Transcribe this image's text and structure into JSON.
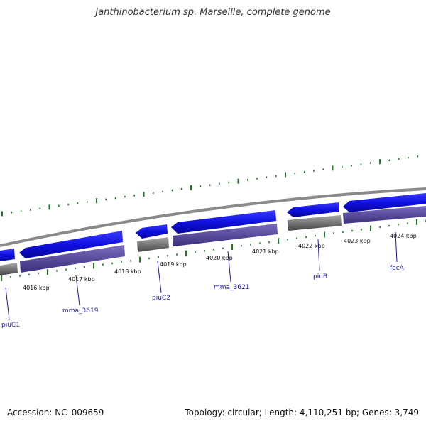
{
  "title": "Janthinobacterium sp. Marseille, complete genome",
  "footer": {
    "accession": "Accession: NC_009659",
    "summary": "Topology: circular; Length: 4,110,251 bp; Genes: 3,749"
  },
  "colors": {
    "gene_forward": "#1010e0",
    "gene_reverse_band": "#5a4c98",
    "backbone": "#808080",
    "backbone_dark": "#555555",
    "tick": "#1c7c1c",
    "label": "#1a1aa0"
  },
  "scale_labels": [
    "4016 kbp",
    "4017 kbp",
    "4018 kbp",
    "4019 kbp",
    "4020 kbp",
    "4021 kbp",
    "4022 kbp",
    "4023 kbp",
    "4024 kbp"
  ],
  "gene_labels": [
    "piuC1",
    "mma_3619",
    "piuC2",
    "mma_3621",
    "piuB",
    "fecA"
  ]
}
